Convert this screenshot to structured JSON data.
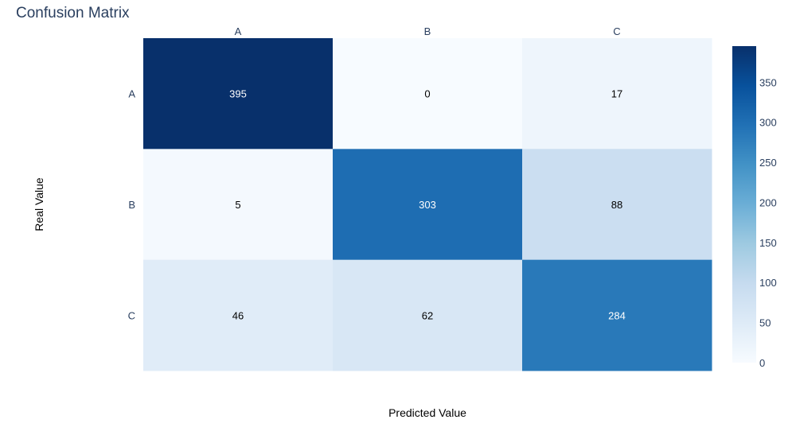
{
  "chart_data": {
    "type": "heatmap",
    "title": "Confusion Matrix",
    "xlabel": "Predicted Value",
    "ylabel": "Real Value",
    "x_categories": [
      "A",
      "B",
      "C"
    ],
    "y_categories": [
      "A",
      "B",
      "C"
    ],
    "values": [
      [
        395,
        0,
        17
      ],
      [
        5,
        303,
        88
      ],
      [
        46,
        62,
        284
      ]
    ],
    "x_axis_position": "top",
    "colorscale": "Blues",
    "colorbar": {
      "range": [
        0,
        395
      ],
      "ticks": [
        0,
        50,
        100,
        150,
        200,
        250,
        300,
        350
      ]
    },
    "grid": false
  }
}
